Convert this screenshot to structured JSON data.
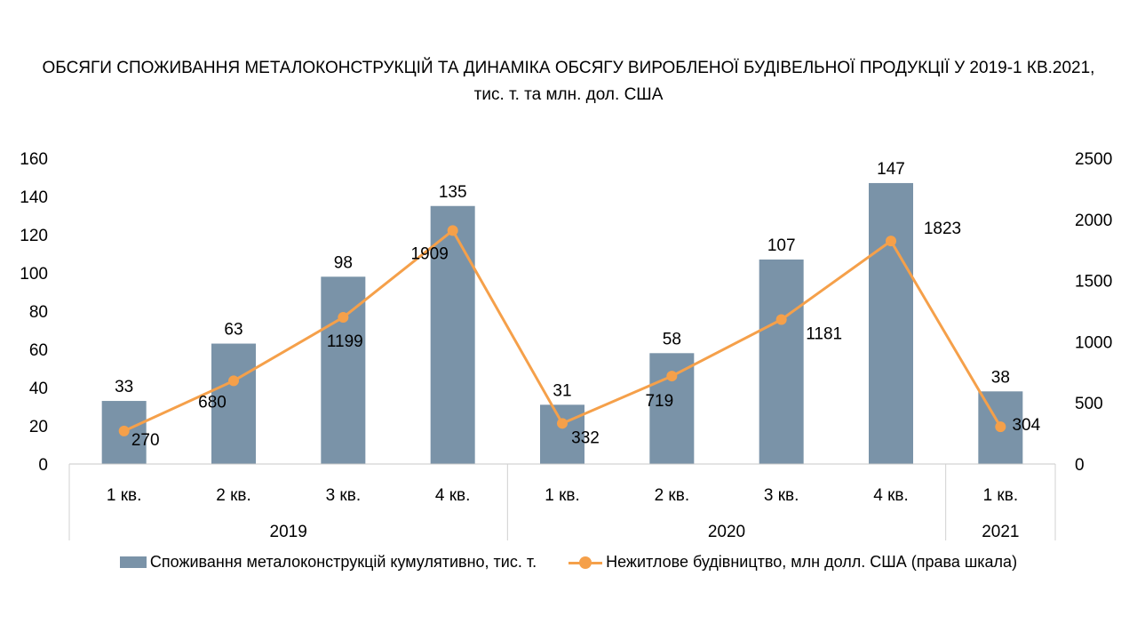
{
  "chart_data": {
    "type": "bar",
    "title_line1": "ОБСЯГИ СПОЖИВАННЯ МЕТАЛОКОНСТРУКЦІЙ ТА ДИНАМІКА ОБСЯГУ ВИРОБЛЕНОЇ БУДІВЕЛЬНОЇ ПРОДУКЦІЇ У 2019-1 КВ.2021,",
    "title_line2": "тис. т. та млн. дол. США",
    "categories": [
      "1 кв.",
      "2 кв.",
      "3 кв.",
      "4 кв.",
      "1 кв.",
      "2 кв.",
      "3 кв.",
      "4 кв.",
      "1 кв."
    ],
    "groups": [
      {
        "label": "2019",
        "count": 4
      },
      {
        "label": "2020",
        "count": 4
      },
      {
        "label": "2021",
        "count": 1
      }
    ],
    "series": [
      {
        "name": "Споживання металоконструкцій кумулятивно, тис. т.",
        "type": "bar",
        "axis": "left",
        "color": "#7a93a8",
        "values": [
          33,
          63,
          98,
          135,
          31,
          58,
          107,
          147,
          38
        ]
      },
      {
        "name": "Нежитлове будівництво, млн долл. США (права шкала)",
        "type": "line",
        "axis": "right",
        "color": "#f5a04a",
        "values": [
          270,
          680,
          1199,
          1909,
          332,
          719,
          1181,
          1823,
          304
        ]
      }
    ],
    "y_left": {
      "min": 0,
      "max": 160,
      "ticks": [
        0,
        20,
        40,
        60,
        80,
        100,
        120,
        140,
        160
      ]
    },
    "y_right": {
      "min": 0,
      "max": 2500,
      "ticks": [
        0,
        500,
        1000,
        1500,
        2000,
        2500
      ]
    },
    "grid": false,
    "legend_position": "bottom"
  }
}
